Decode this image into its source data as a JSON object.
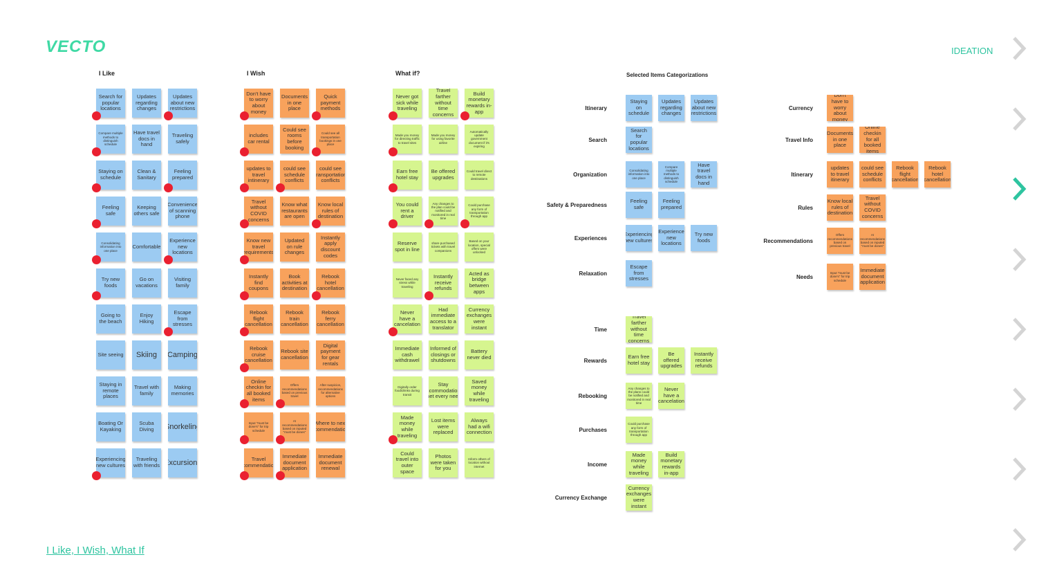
{
  "logo": "VECTO",
  "ideation": "IDEATION",
  "link": "I Like, I Wish, What If",
  "colors": {
    "accent": "#2ec4a0",
    "blue": "#9ccbf2",
    "orange": "#f8a25c",
    "green": "#d6f58f",
    "dot": "#ea2030"
  },
  "columns": [
    {
      "title": "I Like",
      "color": "blue",
      "notes": [
        [
          "Search for popular locations",
          "Updates regarding changes",
          "Updates about new restrictions"
        ],
        [
          "Compare multiple methods to distinguish schedule",
          "Have travel docs in hand",
          "Traveling safely"
        ],
        [
          "Staying on schedule",
          "Clean & Sanitary",
          "Feeling prepared"
        ],
        [
          "Feeling safe",
          "Keeping others safe",
          "Convenience of scanning phone"
        ],
        [
          "Consolidating information into one place",
          "Comfortable",
          "Experience new locations"
        ],
        [
          "Try new foods",
          "Go on vacations",
          "Visiting family"
        ],
        [
          "Going to the beach",
          "Enjoy Hiking",
          "Escape from stresses"
        ],
        [
          "Site seeing",
          "Skiing",
          "Camping"
        ],
        [
          "Staying in remote places",
          "Travel with family",
          "Making memories"
        ],
        [
          "Boating Or Kayaking",
          "Scuba Diving",
          "Snorkeling"
        ],
        [
          "Experiencing new cultures",
          "Traveling with friends",
          "Excursions"
        ]
      ]
    },
    {
      "title": "I Wish",
      "color": "orange",
      "notes": [
        [
          "Don't have to worry about money",
          "Documents in one place",
          "Quick payment methods"
        ],
        [
          "includes car rental",
          "Could see rooms before booking",
          "Could see all transportation bookings in one place"
        ],
        [
          "updates to travel intinerary",
          "could see schedule conflicts",
          "could see transportation conflicts"
        ],
        [
          "Travel without COVID concerns",
          "Know what restaurants are open",
          "Know local rules of destination"
        ],
        [
          "Know new travel requirements",
          "Updated on rule changes",
          "Instantly apply discount codes"
        ],
        [
          "Instantly find coupons",
          "Book activities at destination",
          "Rebook hotel cancellation"
        ],
        [
          "Rebook flight cancellation",
          "Rebook train cancellation",
          "Rebook ferry cancellation"
        ],
        [
          "Rebook cruise cancellation",
          "Rebook site cancellation",
          "Digital payment for gear rentals"
        ],
        [
          "Online checkin for all booked items",
          "Offers recommendations based on previous travel",
          "After suspicion, recommendations for alternative options"
        ],
        [
          "Input \"must be done's\" for trip schedule",
          "AI recommendations based on inputed \"must be dones\"",
          "Where to next recommendations"
        ],
        [
          "Travel recommendations",
          "Immediate document application",
          "Immediate document renewal"
        ]
      ]
    },
    {
      "title": "What if?",
      "color": "green",
      "notes": [
        [
          "Never got sick while traveling",
          "Travel farther without time concerns",
          "Build monetary rewards in-app"
        ],
        [
          "Made you money for directing traffic to travel sites",
          "Made you money for using favorite airline",
          "Automatically update government document if it's expiring"
        ],
        [
          "Earn free hotel stay",
          "Be offered upgrades",
          "Could travel direct to remote destinations"
        ],
        [
          "You could rent a driver",
          "Any changes to the plan could be notified and monitored in real time",
          "Could purchase any form of transportation through app"
        ],
        [
          "Reserve spot in line",
          "share purchased tickets with travel companions",
          "Based on your location, special offers were unlocked"
        ],
        [
          "Never faced any stress while traveling",
          "Instantly receive refunds",
          "Acted as bridge between apps"
        ],
        [
          "Never have a cancelation",
          "Had immediate access to a translator",
          "Currency exchanges were instant"
        ],
        [
          "Immediate cash withdrawel",
          "Informed of closings or shutdowns",
          "Battery never died"
        ],
        [
          "Digitally order food/drinks during transit",
          "Stay accommodations met every need",
          "Saved money while traveling"
        ],
        [
          "Made money while traveling",
          "Lost items were replaced",
          "Always had a wifi connection"
        ],
        [
          "Could travel into outer space",
          "Photos were taken for you",
          "Inform others of location without internet"
        ]
      ]
    }
  ],
  "selected": {
    "title": "Selected Items Categorizations",
    "left": [
      {
        "category": "Itinerary",
        "color": "blue",
        "notes": [
          "Staying on schedule",
          "Updates regarding changes",
          "Updates about new restrictions"
        ]
      },
      {
        "category": "Search",
        "color": "blue",
        "notes": [
          "Search for popular locations"
        ]
      },
      {
        "category": "Organization",
        "color": "blue",
        "notes": [
          "Consolidating information into one place",
          "Compare multiple methods to distinguish schedule",
          "Have travel docs in hand"
        ]
      },
      {
        "category": "Safety & Preparedness",
        "color": "blue",
        "notes": [
          "Feeling safe",
          "Feeling prepared"
        ]
      },
      {
        "category": "Experiences",
        "color": "blue",
        "notes": [
          "Experiencing new cultures",
          "Experience new locations",
          "Try new foods"
        ]
      },
      {
        "category": "Relaxation",
        "color": "blue",
        "notes": [
          "Escape from stresses"
        ]
      },
      {
        "category": "Time",
        "color": "green",
        "notes": [
          "Travel farther without time concerns"
        ]
      },
      {
        "category": "Rewards",
        "color": "green",
        "notes": [
          "Earn free hotel stay",
          "Be offered upgrades",
          "Instantly receive refunds"
        ]
      },
      {
        "category": "Rebooking",
        "color": "green",
        "notes": [
          "Any changes to the plans could be notified and monitored in real time",
          "Never have a cancelation"
        ]
      },
      {
        "category": "Purchases",
        "color": "green",
        "notes": [
          "Could purchase any form of transportation through app"
        ]
      },
      {
        "category": "Income",
        "color": "green",
        "notes": [
          "Made money while traveling",
          "Build monetary rewards in-app"
        ]
      },
      {
        "category": "Currency Exchange",
        "color": "green",
        "notes": [
          "Currency exchanges were instant"
        ]
      }
    ],
    "right": [
      {
        "category": "Currency",
        "color": "orange",
        "notes": [
          "Don't have to worry about money"
        ]
      },
      {
        "category": "Travel Info",
        "color": "orange",
        "notes": [
          "Documents in one place",
          "Online checkin for all booked items"
        ]
      },
      {
        "category": "Itinerary",
        "color": "orange",
        "notes": [
          "updates to travel itinerary",
          "could see schedule conflicts",
          "Rebook flight cancellation",
          "Rebook hotel cancellation"
        ]
      },
      {
        "category": "Rules",
        "color": "orange",
        "notes": [
          "Know local rules of destination",
          "Travel without COVID concerns"
        ]
      },
      {
        "category": "Recommendations",
        "color": "orange",
        "notes": [
          "Offers recommendations based on previous travel",
          "AI recommendations based on inputed \"must be dones\""
        ]
      },
      {
        "category": "Needs",
        "color": "orange",
        "notes": [
          "Input \"must be done's\" for trip schedule",
          "Immediate document application"
        ]
      }
    ]
  },
  "chevrons": [
    {
      "icon": "chevron-right-icon",
      "active": false
    },
    {
      "icon": "chevron-right-icon",
      "active": false
    },
    {
      "icon": "chevron-right-icon",
      "active": true
    },
    {
      "icon": "chevron-right-icon",
      "active": false
    },
    {
      "icon": "chevron-right-icon",
      "active": false
    },
    {
      "icon": "chevron-right-icon",
      "active": false
    },
    {
      "icon": "chevron-right-icon",
      "active": false
    },
    {
      "icon": "chevron-right-icon",
      "active": false
    }
  ]
}
